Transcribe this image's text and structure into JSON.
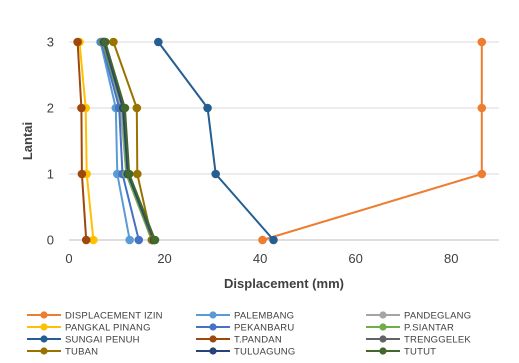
{
  "chart_data": {
    "type": "line",
    "xlabel": "Displacement (mm)",
    "ylabel": "Lantai",
    "xlim": [
      0,
      90
    ],
    "ylim": [
      0,
      3
    ],
    "xticks": [
      "0",
      "20",
      "40",
      "60",
      "80"
    ],
    "yticks": [
      "0",
      "1",
      "2",
      "3"
    ],
    "grid": "horizontal",
    "legend_position": "bottom",
    "y": [
      0,
      1,
      2,
      3
    ],
    "series": [
      {
        "name": "DISPLACEMENT IZIN",
        "color": "#ED7D31",
        "x": [
          40.5,
          86.4,
          86.4,
          86.4
        ]
      },
      {
        "name": "PALEMBANG",
        "color": "#5B9BD5",
        "x": [
          12.7,
          10.1,
          9.8,
          6.6
        ]
      },
      {
        "name": "PANDEGLANG",
        "color": "#A5A5A5",
        "x": [
          17.6,
          12.0,
          10.8,
          7.1
        ]
      },
      {
        "name": "PANGKAL PINANG",
        "color": "#FFC000",
        "x": [
          5.1,
          3.7,
          3.5,
          2.2
        ]
      },
      {
        "name": "PEKANBARU",
        "color": "#4472C4",
        "x": [
          14.6,
          11.2,
          10.5,
          6.8
        ]
      },
      {
        "name": "P.SIANTAR",
        "color": "#70AD47",
        "x": [
          17.3,
          12.0,
          11.2,
          7.0
        ]
      },
      {
        "name": "SUNGAI PENUH",
        "color": "#255E91",
        "x": [
          42.8,
          30.7,
          29.0,
          18.7
        ]
      },
      {
        "name": "T.PANDAN",
        "color": "#9E480E",
        "x": [
          3.6,
          2.7,
          2.6,
          1.8
        ]
      },
      {
        "name": "TRENGGELEK",
        "color": "#636363",
        "x": [
          17.5,
          12.4,
          11.3,
          7.2
        ]
      },
      {
        "name": "TUBAN",
        "color": "#997300",
        "x": [
          17.4,
          14.3,
          14.2,
          9.3
        ]
      },
      {
        "name": "TULUAGUNG",
        "color": "#264478",
        "x": [
          17.8,
          12.3,
          11.3,
          7.4
        ]
      },
      {
        "name": "TUTUT",
        "color": "#43682B",
        "x": [
          18.0,
          12.6,
          11.7,
          7.6
        ]
      }
    ]
  }
}
